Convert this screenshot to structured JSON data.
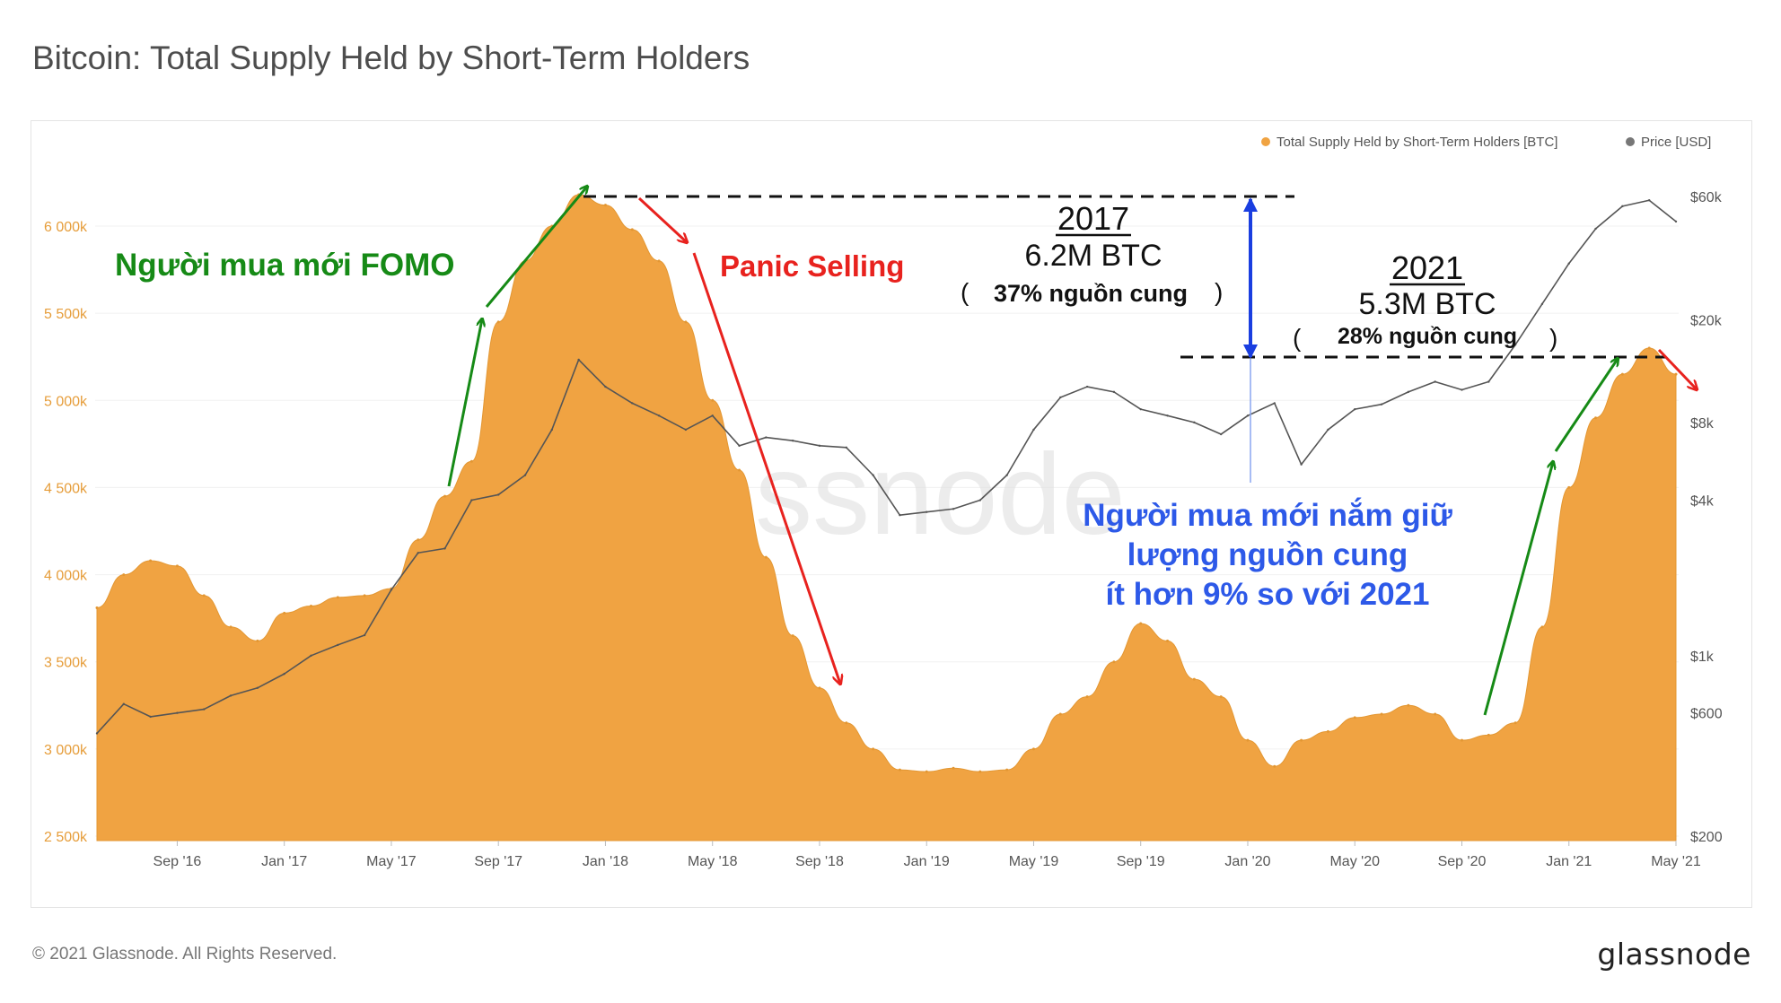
{
  "title": "Bitcoin: Total Supply Held by Short-Term Holders",
  "footer": {
    "copyright": "© 2021 Glassnode. All Rights Reserved.",
    "brand": "glassnode"
  },
  "watermark": "glassnode",
  "colors": {
    "supply": "#f0a342",
    "price": "#9a9a9a",
    "fomo_green": "#168a16",
    "panic_red": "#e8221e",
    "annot_blue": "#2d59e8",
    "range_arrow": "#1a3ee0"
  },
  "chart_data": {
    "type": "area",
    "title": "Bitcoin: Total Supply Held by Short-Term Holders",
    "x_ticks": [
      "Sep '16",
      "Jan '17",
      "May '17",
      "Sep '17",
      "Jan '18",
      "May '18",
      "Sep '18",
      "Jan '19",
      "May '19",
      "Sep '19",
      "Jan '20",
      "May '20",
      "Sep '20",
      "Jan '21",
      "May '21"
    ],
    "y_left": {
      "label": "",
      "ticks": [
        "6 000k",
        "5 500k",
        "5 000k",
        "4 500k",
        "4 000k",
        "3 500k",
        "3 000k",
        "2 500k"
      ],
      "tick_values": [
        6000000,
        5500000,
        5000000,
        4500000,
        4000000,
        3500000,
        3000000,
        2500000
      ],
      "range": [
        2500000,
        6200000
      ]
    },
    "y_right": {
      "label": "",
      "scale": "log",
      "ticks": [
        "$60k",
        "$20k",
        "$8k",
        "$4k",
        "$1k",
        "$600",
        "$200"
      ],
      "tick_values": [
        60000,
        20000,
        8000,
        4000,
        1000,
        600,
        200
      ],
      "range": [
        200,
        60000
      ]
    },
    "legend": {
      "placement": "top-right",
      "items": [
        {
          "label": "Total Supply Held by Short-Term Holders [BTC]",
          "color": "#f0a342"
        },
        {
          "label": "Price [USD]",
          "color": "#777777"
        }
      ]
    },
    "series": [
      {
        "name": "Total Supply Held by Short-Term Holders [BTC]",
        "axis": "left",
        "x": [
          "2016-06",
          "2016-07",
          "2016-08",
          "2016-09",
          "2016-10",
          "2016-11",
          "2016-12",
          "2017-01",
          "2017-02",
          "2017-03",
          "2017-04",
          "2017-05",
          "2017-06",
          "2017-07",
          "2017-08",
          "2017-09",
          "2017-10",
          "2017-11",
          "2017-12",
          "2018-01",
          "2018-02",
          "2018-03",
          "2018-04",
          "2018-05",
          "2018-06",
          "2018-07",
          "2018-08",
          "2018-09",
          "2018-10",
          "2018-11",
          "2018-12",
          "2019-01",
          "2019-02",
          "2019-03",
          "2019-04",
          "2019-05",
          "2019-06",
          "2019-07",
          "2019-08",
          "2019-09",
          "2019-10",
          "2019-11",
          "2019-12",
          "2020-01",
          "2020-02",
          "2020-03",
          "2020-04",
          "2020-05",
          "2020-06",
          "2020-07",
          "2020-08",
          "2020-09",
          "2020-10",
          "2020-11",
          "2020-12",
          "2021-01",
          "2021-02",
          "2021-03",
          "2021-04",
          "2021-05"
        ],
        "values": [
          3810000,
          4000000,
          4080000,
          4050000,
          3880000,
          3700000,
          3620000,
          3780000,
          3820000,
          3870000,
          3880000,
          3920000,
          4200000,
          4450000,
          4650000,
          5450000,
          5800000,
          6000000,
          6180000,
          6120000,
          5980000,
          5800000,
          5450000,
          5000000,
          4600000,
          4100000,
          3650000,
          3350000,
          3150000,
          3000000,
          2880000,
          2870000,
          2890000,
          2870000,
          2880000,
          3000000,
          3200000,
          3300000,
          3500000,
          3720000,
          3620000,
          3400000,
          3300000,
          3050000,
          2900000,
          3050000,
          3100000,
          3180000,
          3200000,
          3250000,
          3200000,
          3050000,
          3080000,
          3150000,
          3700000,
          4500000,
          4900000,
          5150000,
          5300000,
          5150000
        ]
      },
      {
        "name": "Price [USD]",
        "axis": "right",
        "x": [
          "2016-06",
          "2016-07",
          "2016-08",
          "2016-09",
          "2016-10",
          "2016-11",
          "2016-12",
          "2017-01",
          "2017-02",
          "2017-03",
          "2017-04",
          "2017-05",
          "2017-06",
          "2017-07",
          "2017-08",
          "2017-09",
          "2017-10",
          "2017-11",
          "2017-12",
          "2018-01",
          "2018-02",
          "2018-03",
          "2018-04",
          "2018-05",
          "2018-06",
          "2018-07",
          "2018-08",
          "2018-09",
          "2018-10",
          "2018-11",
          "2018-12",
          "2019-01",
          "2019-02",
          "2019-03",
          "2019-04",
          "2019-05",
          "2019-06",
          "2019-07",
          "2019-08",
          "2019-09",
          "2019-10",
          "2019-11",
          "2019-12",
          "2020-01",
          "2020-02",
          "2020-03",
          "2020-04",
          "2020-05",
          "2020-06",
          "2020-07",
          "2020-08",
          "2020-09",
          "2020-10",
          "2020-11",
          "2020-12",
          "2021-01",
          "2021-02",
          "2021-03",
          "2021-04",
          "2021-05"
        ],
        "values": [
          500,
          650,
          580,
          600,
          620,
          700,
          750,
          850,
          1000,
          1100,
          1200,
          1800,
          2500,
          2600,
          4000,
          4200,
          5000,
          7500,
          14000,
          11000,
          9500,
          8500,
          7500,
          8500,
          6500,
          7000,
          6800,
          6500,
          6400,
          5000,
          3500,
          3600,
          3700,
          4000,
          5000,
          7500,
          10000,
          11000,
          10500,
          9000,
          8500,
          8000,
          7200,
          8500,
          9500,
          5500,
          7500,
          9000,
          9400,
          10500,
          11500,
          10700,
          11500,
          16000,
          23000,
          33000,
          45000,
          55000,
          58000,
          48000
        ]
      }
    ],
    "annotations": {
      "fomo": "Người mua mới FOMO",
      "panic": "Panic Selling",
      "box_2017": {
        "year": "2017",
        "amount": "6.2M BTC",
        "share": "37% nguồn cung"
      },
      "box_2021": {
        "year": "2021",
        "amount": "5.3M BTC",
        "share": "28% nguồn cung"
      },
      "new_buyers_lines": [
        "Người mua mới nắm giữ",
        "lượng nguồn cung",
        "ít hơn 9% so với 2021"
      ]
    }
  }
}
